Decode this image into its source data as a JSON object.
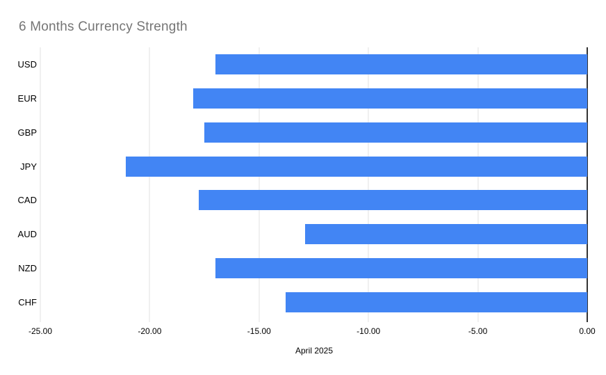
{
  "chart_data": {
    "type": "bar",
    "orientation": "horizontal",
    "title": "6 Months Currency Strength",
    "xlabel": "April 2025",
    "ylabel": "",
    "categories": [
      "USD",
      "EUR",
      "GBP",
      "JPY",
      "CAD",
      "AUD",
      "NZD",
      "CHF"
    ],
    "values": [
      -17.0,
      -18.0,
      -17.5,
      -21.1,
      -17.75,
      -12.9,
      -17.0,
      -13.8
    ],
    "xlim": [
      -25,
      0
    ],
    "x_ticks": [
      {
        "value": -25,
        "label": "-25.00"
      },
      {
        "value": -20,
        "label": "-20.00"
      },
      {
        "value": -15,
        "label": "-15.00"
      },
      {
        "value": -10,
        "label": "-10.00"
      },
      {
        "value": -5,
        "label": "-5.00"
      },
      {
        "value": 0,
        "label": "0.00"
      }
    ],
    "grid": "vertical",
    "legend": "none",
    "theme": {
      "bar_color": "#4285f4",
      "gridline_color": "#e0e0e0",
      "zero_line_color": "#333333",
      "title_color": "#757575",
      "text_color": "#000000",
      "background_color": "#ffffff"
    }
  }
}
